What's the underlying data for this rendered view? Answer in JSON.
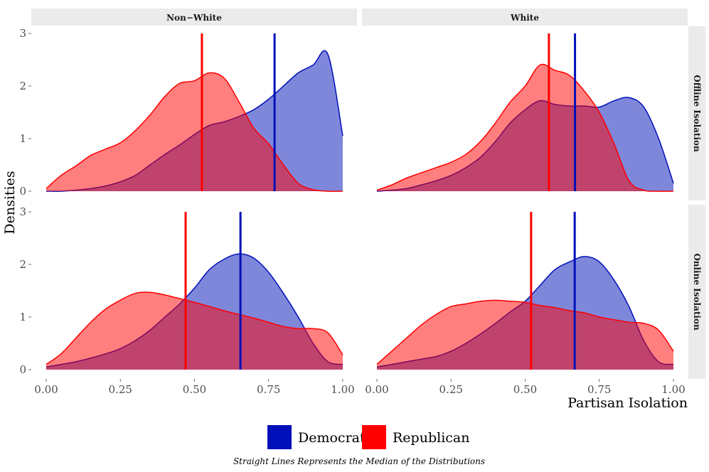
{
  "chart_data": {
    "type": "area",
    "title": "",
    "xlabel": "Partisan Isolation",
    "ylabel": "Densities",
    "xlim": [
      0,
      1
    ],
    "ylim": [
      0,
      3
    ],
    "x_ticks": [
      "0.00",
      "0.25",
      "0.50",
      "0.75",
      "1.00"
    ],
    "y_ticks": [
      "0",
      "1",
      "2",
      "3"
    ],
    "columns": [
      "Non−White",
      "White"
    ],
    "rows": [
      "Offline Isolation",
      "Online Isolation"
    ],
    "legend": [
      {
        "name": "Democrat",
        "color": "#0010B8"
      },
      {
        "name": "Republican",
        "color": "#FF0000"
      }
    ],
    "caption": "Straight Lines Represents the Median of the Distributions",
    "x": [
      0.0,
      0.05,
      0.1,
      0.15,
      0.2,
      0.25,
      0.3,
      0.35,
      0.4,
      0.45,
      0.5,
      0.55,
      0.6,
      0.65,
      0.7,
      0.75,
      0.8,
      0.85,
      0.9,
      0.95,
      1.0
    ],
    "panels": [
      {
        "column": "Non−White",
        "row": "Offline Isolation",
        "democrat_density": [
          0.0,
          0.0,
          0.02,
          0.05,
          0.1,
          0.18,
          0.3,
          0.5,
          0.7,
          0.88,
          1.08,
          1.25,
          1.32,
          1.42,
          1.55,
          1.75,
          2.0,
          2.25,
          2.4,
          2.6,
          1.05
        ],
        "republican_density": [
          0.05,
          0.3,
          0.48,
          0.68,
          0.8,
          0.92,
          1.15,
          1.45,
          1.8,
          2.05,
          2.1,
          2.25,
          2.15,
          1.7,
          1.2,
          0.9,
          0.5,
          0.15,
          0.03,
          0.0,
          0.0
        ],
        "democrat_median": 0.77,
        "republican_median": 0.525
      },
      {
        "column": "White",
        "row": "Offline Isolation",
        "democrat_density": [
          0.0,
          0.02,
          0.05,
          0.12,
          0.2,
          0.3,
          0.45,
          0.65,
          0.95,
          1.3,
          1.55,
          1.72,
          1.65,
          1.62,
          1.62,
          1.6,
          1.72,
          1.78,
          1.6,
          1.0,
          0.15
        ],
        "republican_density": [
          0.02,
          0.12,
          0.25,
          0.35,
          0.45,
          0.55,
          0.7,
          0.95,
          1.3,
          1.7,
          2.0,
          2.4,
          2.3,
          2.2,
          1.9,
          1.5,
          0.9,
          0.2,
          0.02,
          0.0,
          0.0
        ],
        "democrat_median": 0.668,
        "republican_median": 0.58
      },
      {
        "column": "Non−White",
        "row": "Online Isolation",
        "democrat_density": [
          0.05,
          0.1,
          0.15,
          0.22,
          0.3,
          0.4,
          0.55,
          0.75,
          1.0,
          1.25,
          1.55,
          1.9,
          2.1,
          2.2,
          2.12,
          1.85,
          1.45,
          1.0,
          0.5,
          0.15,
          0.1
        ],
        "republican_density": [
          0.1,
          0.3,
          0.6,
          0.9,
          1.15,
          1.32,
          1.45,
          1.47,
          1.42,
          1.35,
          1.28,
          1.2,
          1.12,
          1.05,
          0.98,
          0.9,
          0.82,
          0.78,
          0.78,
          0.7,
          0.28
        ],
        "democrat_median": 0.655,
        "republican_median": 0.47
      },
      {
        "column": "White",
        "row": "Online Isolation",
        "democrat_density": [
          0.05,
          0.1,
          0.15,
          0.2,
          0.25,
          0.35,
          0.5,
          0.68,
          0.88,
          1.1,
          1.3,
          1.6,
          1.9,
          2.05,
          2.15,
          2.05,
          1.7,
          1.2,
          0.55,
          0.15,
          0.1
        ],
        "republican_density": [
          0.1,
          0.35,
          0.6,
          0.85,
          1.05,
          1.2,
          1.25,
          1.3,
          1.32,
          1.3,
          1.28,
          1.22,
          1.18,
          1.12,
          1.08,
          1.0,
          0.95,
          0.9,
          0.88,
          0.75,
          0.35
        ],
        "democrat_median": 0.667,
        "republican_median": 0.52
      }
    ]
  }
}
